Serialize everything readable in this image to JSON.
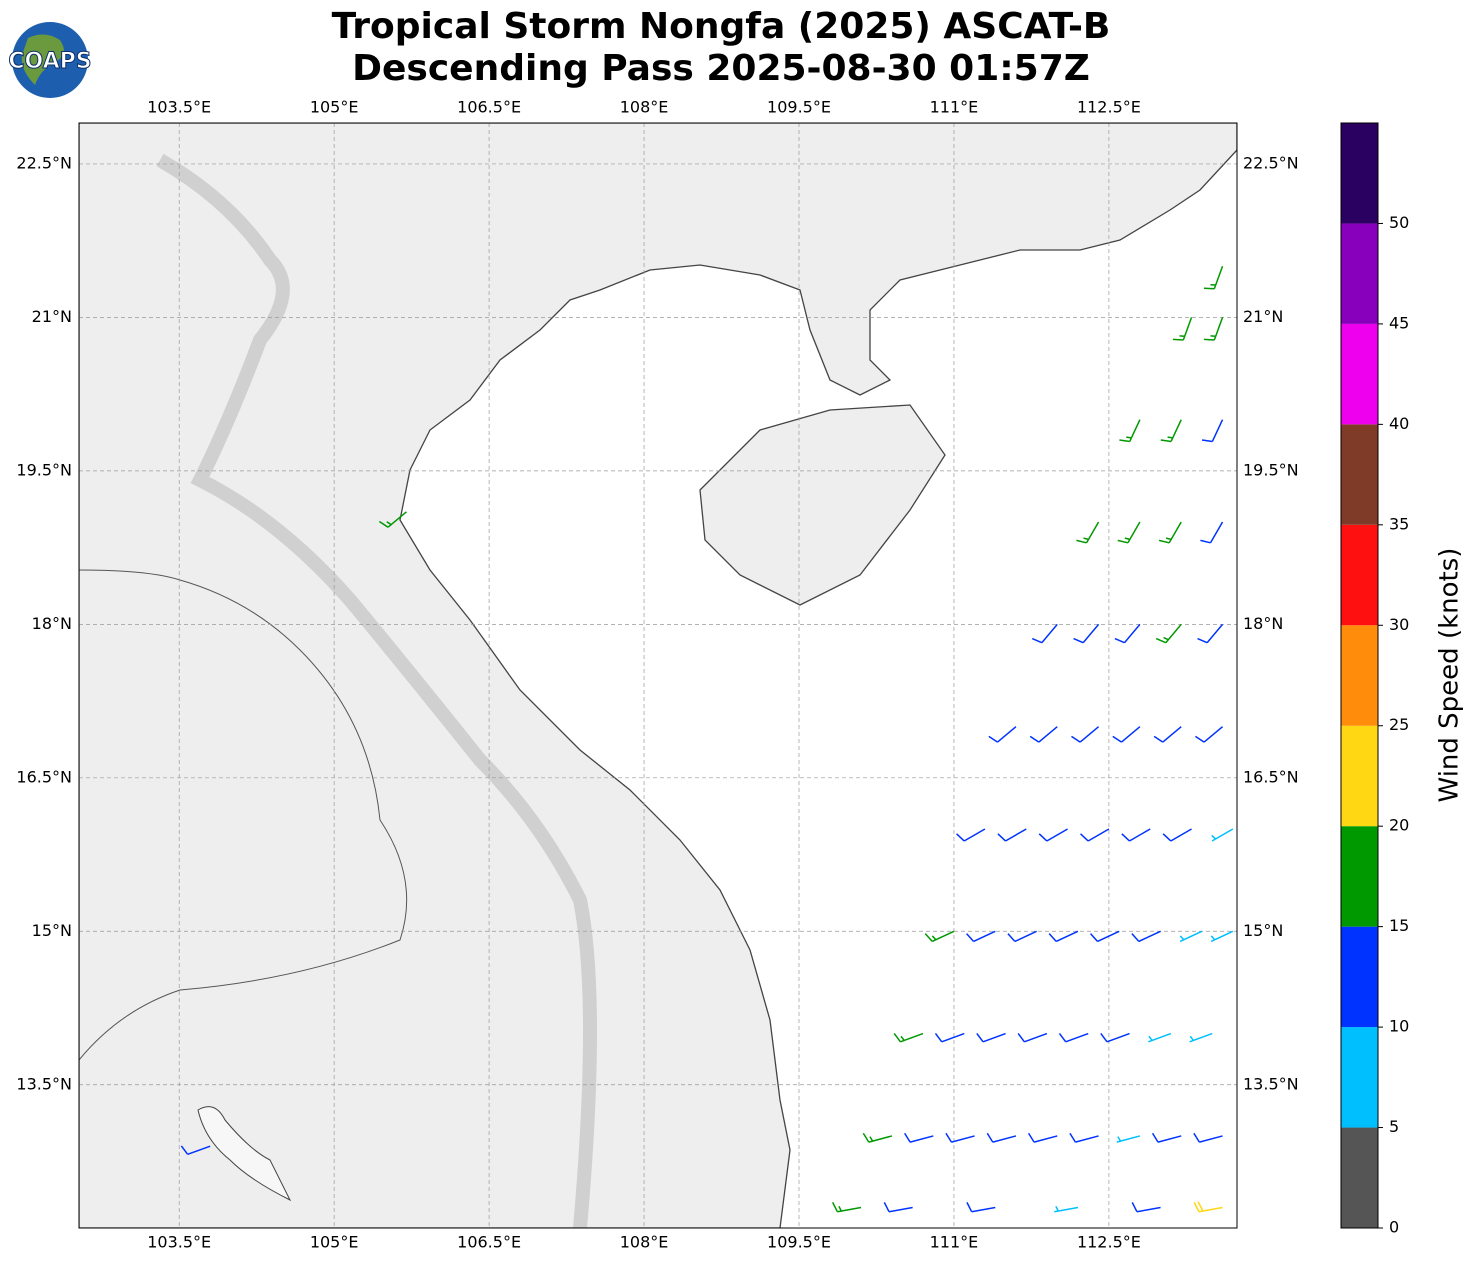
{
  "chart_data": {
    "type": "wind-barb-map",
    "title": "Tropical Storm Nongfa (2025) ASCAT-B",
    "subtitle": "Descending Pass 2025-08-30 01:57Z",
    "logo": "COAPS",
    "xlim": [
      102.53,
      113.74
    ],
    "ylim": [
      12.1,
      22.9
    ],
    "xticks": [
      {
        "value": 103.5,
        "label": "103.5°E"
      },
      {
        "value": 105,
        "label": "105°E"
      },
      {
        "value": 106.5,
        "label": "106.5°E"
      },
      {
        "value": 108,
        "label": "108°E"
      },
      {
        "value": 109.5,
        "label": "109.5°E"
      },
      {
        "value": 111,
        "label": "111°E"
      },
      {
        "value": 112.5,
        "label": "112.5°E"
      }
    ],
    "yticks": [
      {
        "value": 22.5,
        "label": "22.5°N"
      },
      {
        "value": 21,
        "label": "21°N"
      },
      {
        "value": 19.5,
        "label": "19.5°N"
      },
      {
        "value": 18,
        "label": "18°N"
      },
      {
        "value": 16.5,
        "label": "16.5°N"
      },
      {
        "value": 15,
        "label": "15°N"
      },
      {
        "value": 13.5,
        "label": "13.5°N"
      }
    ],
    "grid": true,
    "colorbar": {
      "label": "Wind Speed (knots)",
      "lim": [
        0,
        55
      ],
      "ticks": [
        0,
        5,
        10,
        15,
        20,
        25,
        30,
        35,
        40,
        45,
        50
      ],
      "colors": [
        "#555555",
        "#00bfff",
        "#0033ff",
        "#009900",
        "#ffd712",
        "#ff8c0a",
        "#ff1010",
        "#7f3a28",
        "#ee00ee",
        "#8800bb",
        "#2a0060"
      ]
    },
    "barbs": [
      {
        "lon": 113.6,
        "lat": 21.5,
        "speed": 16,
        "direction": 200
      },
      {
        "lon": 113.3,
        "lat": 21.0,
        "speed": 17,
        "direction": 200
      },
      {
        "lon": 113.6,
        "lat": 21.0,
        "speed": 16,
        "direction": 200
      },
      {
        "lon": 112.8,
        "lat": 20.0,
        "speed": 17,
        "direction": 205
      },
      {
        "lon": 113.2,
        "lat": 20.0,
        "speed": 16,
        "direction": 205
      },
      {
        "lon": 113.6,
        "lat": 20.0,
        "speed": 14,
        "direction": 205
      },
      {
        "lon": 112.4,
        "lat": 19.0,
        "speed": 17,
        "direction": 210
      },
      {
        "lon": 112.8,
        "lat": 19.0,
        "speed": 16,
        "direction": 210
      },
      {
        "lon": 113.2,
        "lat": 19.0,
        "speed": 16,
        "direction": 210
      },
      {
        "lon": 113.6,
        "lat": 19.0,
        "speed": 14,
        "direction": 210
      },
      {
        "lon": 112.0,
        "lat": 18.0,
        "speed": 13,
        "direction": 220
      },
      {
        "lon": 112.4,
        "lat": 18.0,
        "speed": 12,
        "direction": 220
      },
      {
        "lon": 112.8,
        "lat": 18.0,
        "speed": 14,
        "direction": 220
      },
      {
        "lon": 113.2,
        "lat": 18.0,
        "speed": 16,
        "direction": 220
      },
      {
        "lon": 113.6,
        "lat": 18.0,
        "speed": 14,
        "direction": 220
      },
      {
        "lon": 111.6,
        "lat": 17.0,
        "speed": 12,
        "direction": 230
      },
      {
        "lon": 112.0,
        "lat": 17.0,
        "speed": 12,
        "direction": 230
      },
      {
        "lon": 112.4,
        "lat": 17.0,
        "speed": 13,
        "direction": 230
      },
      {
        "lon": 112.8,
        "lat": 17.0,
        "speed": 12,
        "direction": 230
      },
      {
        "lon": 113.2,
        "lat": 17.0,
        "speed": 12,
        "direction": 230
      },
      {
        "lon": 113.6,
        "lat": 17.0,
        "speed": 13,
        "direction": 230
      },
      {
        "lon": 111.3,
        "lat": 16.0,
        "speed": 13,
        "direction": 240
      },
      {
        "lon": 111.7,
        "lat": 16.0,
        "speed": 12,
        "direction": 240
      },
      {
        "lon": 112.1,
        "lat": 16.0,
        "speed": 12,
        "direction": 240
      },
      {
        "lon": 112.5,
        "lat": 16.0,
        "speed": 11,
        "direction": 240
      },
      {
        "lon": 112.9,
        "lat": 16.0,
        "speed": 12,
        "direction": 240
      },
      {
        "lon": 113.3,
        "lat": 16.0,
        "speed": 11,
        "direction": 240
      },
      {
        "lon": 113.7,
        "lat": 16.0,
        "speed": 8,
        "direction": 240
      },
      {
        "lon": 111.0,
        "lat": 15.0,
        "speed": 16,
        "direction": 245
      },
      {
        "lon": 111.4,
        "lat": 15.0,
        "speed": 12,
        "direction": 245
      },
      {
        "lon": 111.8,
        "lat": 15.0,
        "speed": 12,
        "direction": 245
      },
      {
        "lon": 112.2,
        "lat": 15.0,
        "speed": 11,
        "direction": 245
      },
      {
        "lon": 112.6,
        "lat": 15.0,
        "speed": 11,
        "direction": 245
      },
      {
        "lon": 113.0,
        "lat": 15.0,
        "speed": 11,
        "direction": 245
      },
      {
        "lon": 113.4,
        "lat": 15.0,
        "speed": 9,
        "direction": 245
      },
      {
        "lon": 113.7,
        "lat": 15.0,
        "speed": 8,
        "direction": 245
      },
      {
        "lon": 110.7,
        "lat": 14.0,
        "speed": 16,
        "direction": 250
      },
      {
        "lon": 111.1,
        "lat": 14.0,
        "speed": 12,
        "direction": 250
      },
      {
        "lon": 111.5,
        "lat": 14.0,
        "speed": 12,
        "direction": 250
      },
      {
        "lon": 111.9,
        "lat": 14.0,
        "speed": 12,
        "direction": 250
      },
      {
        "lon": 112.3,
        "lat": 14.0,
        "speed": 12,
        "direction": 250
      },
      {
        "lon": 112.7,
        "lat": 14.0,
        "speed": 11,
        "direction": 250
      },
      {
        "lon": 113.1,
        "lat": 14.0,
        "speed": 8,
        "direction": 250
      },
      {
        "lon": 113.5,
        "lat": 14.0,
        "speed": 8,
        "direction": 250
      },
      {
        "lon": 110.4,
        "lat": 13.0,
        "speed": 16,
        "direction": 255
      },
      {
        "lon": 110.8,
        "lat": 13.0,
        "speed": 12,
        "direction": 255
      },
      {
        "lon": 111.2,
        "lat": 13.0,
        "speed": 12,
        "direction": 255
      },
      {
        "lon": 111.6,
        "lat": 13.0,
        "speed": 13,
        "direction": 255
      },
      {
        "lon": 112.0,
        "lat": 13.0,
        "speed": 12,
        "direction": 255
      },
      {
        "lon": 112.4,
        "lat": 13.0,
        "speed": 11,
        "direction": 255
      },
      {
        "lon": 112.8,
        "lat": 13.0,
        "speed": 9,
        "direction": 255
      },
      {
        "lon": 113.2,
        "lat": 13.0,
        "speed": 12,
        "direction": 255
      },
      {
        "lon": 113.6,
        "lat": 13.0,
        "speed": 14,
        "direction": 255
      },
      {
        "lon": 110.1,
        "lat": 12.3,
        "speed": 16,
        "direction": 260
      },
      {
        "lon": 110.6,
        "lat": 12.3,
        "speed": 13,
        "direction": 260
      },
      {
        "lon": 111.4,
        "lat": 12.3,
        "speed": 12,
        "direction": 260
      },
      {
        "lon": 112.2,
        "lat": 12.3,
        "speed": 9,
        "direction": 260
      },
      {
        "lon": 113.0,
        "lat": 12.3,
        "speed": 12,
        "direction": 260
      },
      {
        "lon": 113.6,
        "lat": 12.3,
        "speed": 22,
        "direction": 260
      },
      {
        "lon": 105.7,
        "lat": 19.1,
        "speed": 17,
        "direction": 230
      },
      {
        "lon": 103.8,
        "lat": 12.9,
        "speed": 12,
        "direction": 250
      }
    ]
  }
}
